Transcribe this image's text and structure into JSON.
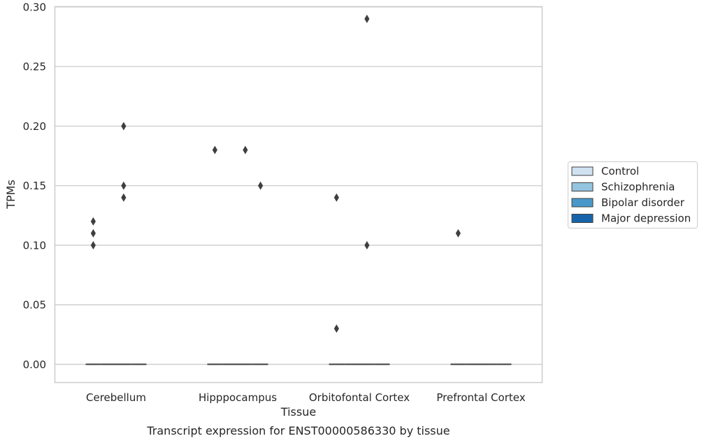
{
  "chart_data": {
    "type": "box",
    "xlabel": "Tissue",
    "ylabel": "TPMs",
    "caption": "Transcript expression for ENST00000586330 by tissue",
    "categories": [
      "Cerebellum",
      "Hipppocampus",
      "Orbitofontal Cortex",
      "Prefrontal Cortex"
    ],
    "ylim": [
      -0.015,
      0.3
    ],
    "yticks": [
      "0.00",
      "0.05",
      "0.10",
      "0.15",
      "0.20",
      "0.25",
      "0.30"
    ],
    "grid": true,
    "legend_position": "right",
    "series": [
      {
        "name": "Control",
        "color": "#d0e1f2",
        "median": [
          0,
          0,
          0,
          0
        ],
        "outliers": [
          [
            0.12,
            0.11,
            0.1
          ],
          [
            0.18
          ],
          [
            0.14,
            0.03
          ],
          [
            0.11
          ]
        ]
      },
      {
        "name": "Schizophrenia",
        "color": "#94c4df",
        "median": [
          0,
          0,
          0,
          0
        ],
        "outliers": [
          [],
          [],
          [],
          []
        ]
      },
      {
        "name": "Bipolar disorder",
        "color": "#4a98c9",
        "median": [
          0,
          0,
          0,
          0
        ],
        "outliers": [
          [
            0.2,
            0.15,
            0.14
          ],
          [
            0.18
          ],
          [
            0.29,
            0.1
          ],
          []
        ]
      },
      {
        "name": "Major depression",
        "color": "#1764ab",
        "median": [
          0,
          0,
          0,
          0
        ],
        "outliers": [
          [],
          [
            0.15
          ],
          [],
          []
        ]
      }
    ]
  }
}
